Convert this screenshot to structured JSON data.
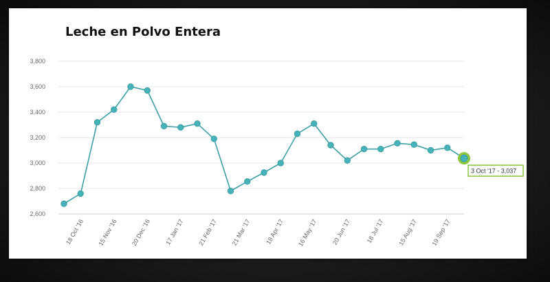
{
  "chart_data": {
    "type": "line",
    "title": "Leche en Polvo Entera",
    "xlabel": "",
    "ylabel": "",
    "ylim": [
      2600,
      3800
    ],
    "yticks": [
      "2,600",
      "2,800",
      "3,000",
      "3,200",
      "3,400",
      "3,600",
      "3,800"
    ],
    "ytick_values": [
      2600,
      2800,
      3000,
      3200,
      3400,
      3600,
      3800
    ],
    "xtick_labels": [
      "18 Oct '16",
      "15 Nov '16",
      "20 Dec '16",
      "17 Jan '17",
      "21 Feb '17",
      "21 Mar '17",
      "18 Apr '17",
      "16 May '17",
      "20 Jun '17",
      "18 Jul '17",
      "15 Aug '17",
      "19 Sep '17"
    ],
    "x": [
      "4 Oct '16",
      "18 Oct '16",
      "1 Nov '16",
      "15 Nov '16",
      "6 Dec '16",
      "20 Dec '16",
      "3 Jan '17",
      "17 Jan '17",
      "7 Feb '17",
      "21 Feb '17",
      "7 Mar '17",
      "21 Mar '17",
      "4 Apr '17",
      "18 Apr '17",
      "2 May '17",
      "16 May '17",
      "6 Jun '17",
      "20 Jun '17",
      "4 Jul '17",
      "18 Jul '17",
      "1 Aug '17",
      "15 Aug '17",
      "5 Sep '17",
      "19 Sep '17",
      "3 Oct '17"
    ],
    "values": [
      2680,
      2760,
      3320,
      3420,
      3600,
      3570,
      3290,
      3280,
      3310,
      3190,
      2780,
      2855,
      2925,
      3000,
      3230,
      3310,
      3140,
      3020,
      3110,
      3110,
      3155,
      3145,
      3100,
      3120,
      3037
    ],
    "line_color": "#3a9ea5",
    "marker_color": "#46b3b8",
    "highlight_color": "#8cc63f",
    "grid": true,
    "tooltip": {
      "date": "3 Oct '17",
      "value": "3,037",
      "separator": "-"
    }
  }
}
